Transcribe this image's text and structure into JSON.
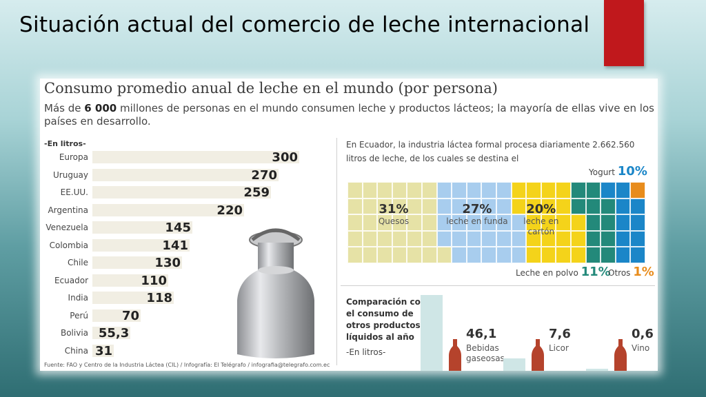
{
  "slide": {
    "title": "Situación actual del comercio de leche internacional",
    "accent_color": "#c0181c"
  },
  "infographic": {
    "title": "Consumo promedio anual de leche en el mundo (por persona)",
    "description_prefix": "Más de ",
    "description_bold": "6 000",
    "description_suffix": " millones de personas en el mundo consumen leche y productos lácteos; la mayoría de ellas vive en los países en desarrollo.",
    "source": "Fuente: FAO y Centro de la Industria Láctea (CIL) / Infografía: El Telégrafo / infografia@telegrafo.com.ec",
    "image_icon": "milk-can-icon"
  },
  "chart_data": [
    {
      "type": "bar",
      "unit_label": "-En litros-",
      "categories": [
        "Europa",
        "Uruguay",
        "EE.UU.",
        "Argentina",
        "Venezuela",
        "Colombia",
        "Chile",
        "Ecuador",
        "India",
        "Perú",
        "Bolivia",
        "China"
      ],
      "values": [
        300,
        270,
        259,
        220,
        145,
        141,
        130,
        110,
        118,
        70,
        55.3,
        31
      ],
      "value_labels": [
        "300",
        "270",
        "259",
        "220",
        "145",
        "141",
        "130",
        "110",
        "118",
        "70",
        "55,3",
        "31"
      ],
      "bar_color": "#f1eee3"
    },
    {
      "type": "table",
      "intro": "En Ecuador, la industria láctea formal procesa diariamente 2.662.560 litros de leche, de los cuales se destina el",
      "segments": [
        {
          "pct_label": "31%",
          "name": "Quesos",
          "value": 31,
          "color": "#e6e2a6"
        },
        {
          "pct_label": "27%",
          "name": "leche en funda",
          "value": 27,
          "color": "#a8cdee"
        },
        {
          "pct_label": "20%",
          "name": "leche en cartón",
          "value": 20,
          "color": "#f4d31a"
        },
        {
          "pct_label": "11%",
          "name": "Leche en polvo",
          "value": 11,
          "color": "#23897a"
        },
        {
          "pct_label": "10%",
          "name": "Yogurt",
          "value": 10,
          "color": "#1b86c8"
        },
        {
          "pct_label": "1%",
          "name": "Otros",
          "value": 1,
          "color": "#e88c1c"
        }
      ]
    },
    {
      "type": "bar",
      "title": "Comparación con el consumo de otros productos líquidos al año",
      "unit_label": "-En litros-",
      "categories": [
        "Bebidas gaseosas",
        "Licor",
        "Vino"
      ],
      "values": [
        46.1,
        7.6,
        0.6
      ],
      "value_labels": [
        "46,1",
        "7,6",
        "0,6"
      ],
      "bar_color": "#cfe6e6",
      "bottle_icon": "bottle-icon"
    }
  ]
}
